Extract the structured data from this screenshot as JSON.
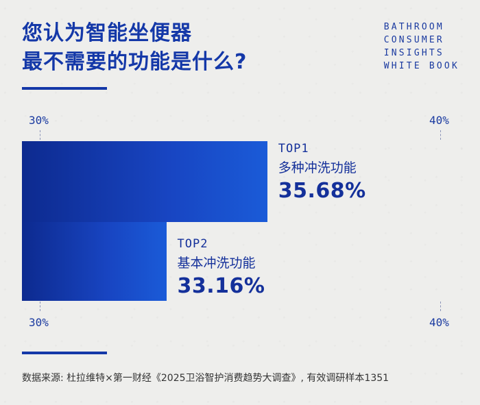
{
  "title_line1": "您认为智能坐便器",
  "title_line2": "最不需要的功能是什么?",
  "brand_lines": [
    "BATHROOM",
    "CONSUMER",
    "INSIGHTS",
    "WHITE BOOK"
  ],
  "source": "数据来源: 杜拉维特×第一财经《2025卫浴智护消费趋势大调查》, 有效调研样本1351",
  "chart_data": {
    "type": "bar",
    "orientation": "horizontal",
    "xlim": [
      30,
      40
    ],
    "axis_tick_labels": [
      "30%",
      "40%"
    ],
    "categories": [
      "多种冲洗功能",
      "基本冲洗功能"
    ],
    "ranks": [
      "TOP1",
      "TOP2"
    ],
    "values": [
      35.68,
      33.16
    ],
    "value_labels": [
      "35.68%",
      "33.16%"
    ],
    "unit": "%",
    "colors": [
      "#0d2a8f",
      "#1a5bd8"
    ],
    "grid": false
  }
}
